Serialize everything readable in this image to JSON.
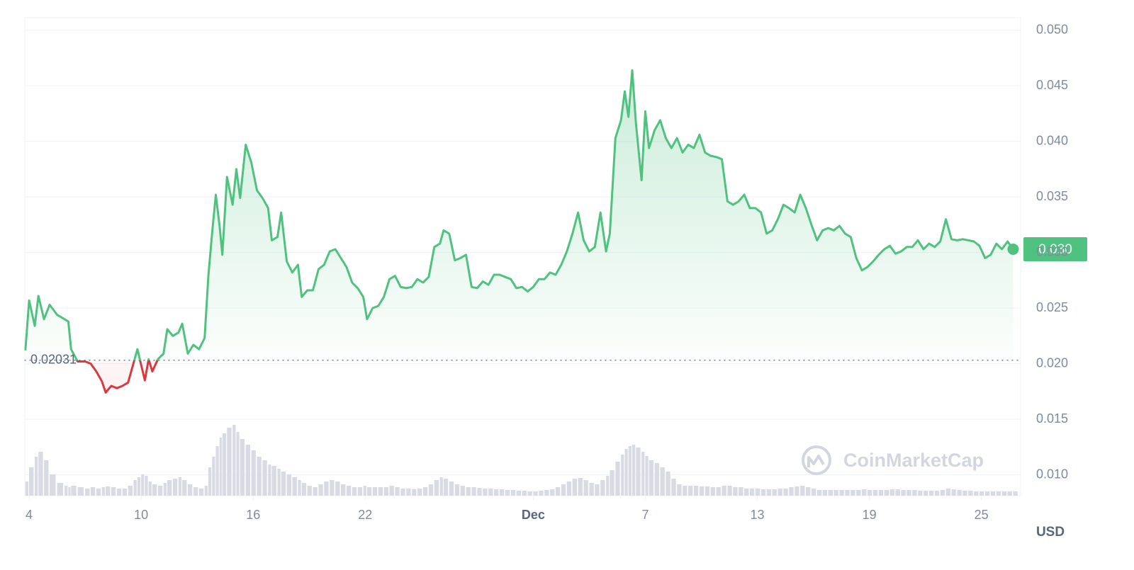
{
  "chart_data": {
    "type": "line",
    "x": [
      3.8,
      4.0,
      4.3,
      4.5,
      4.8,
      5.1,
      5.5,
      5.9,
      6.1,
      6.25,
      6.6,
      7.0,
      7.3,
      7.6,
      7.9,
      8.1,
      8.4,
      8.7,
      9.0,
      9.3,
      9.6,
      9.8,
      10.0,
      10.2,
      10.4,
      10.6,
      10.9,
      11.2,
      11.4,
      11.7,
      12.0,
      12.2,
      12.5,
      12.8,
      13.1,
      13.4,
      13.6,
      13.8,
      14.0,
      14.2,
      14.35,
      14.6,
      14.9,
      15.1,
      15.3,
      15.6,
      15.9,
      16.2,
      16.5,
      16.8,
      17.0,
      17.3,
      17.5,
      17.8,
      18.1,
      18.4,
      18.6,
      18.9,
      19.2,
      19.5,
      19.8,
      20.1,
      20.4,
      20.7,
      21.0,
      21.3,
      21.6,
      21.9,
      22.1,
      22.4,
      22.7,
      23.0,
      23.3,
      23.6,
      23.9,
      24.2,
      24.5,
      24.8,
      25.1,
      25.4,
      25.7,
      26.0,
      26.2,
      26.5,
      26.8,
      27.1,
      27.4,
      27.7,
      28.0,
      28.3,
      28.6,
      28.9,
      29.2,
      29.5,
      29.8,
      30.1,
      30.4,
      30.7,
      31.0,
      31.3,
      31.6,
      31.9,
      32.2,
      32.5,
      32.8,
      33.1,
      33.4,
      33.7,
      34.0,
      34.3,
      34.6,
      34.9,
      35.1,
      35.4,
      35.7,
      35.9,
      36.1,
      36.3,
      36.5,
      36.8,
      37.0,
      37.2,
      37.5,
      37.8,
      38.1,
      38.4,
      38.7,
      39.0,
      39.3,
      39.6,
      39.9,
      40.2,
      40.5,
      40.8,
      41.1,
      41.4,
      41.7,
      42.0,
      42.3,
      42.6,
      42.9,
      43.2,
      43.5,
      43.8,
      44.1,
      44.4,
      44.7,
      45.0,
      45.3,
      45.6,
      45.9,
      46.2,
      46.5,
      46.8,
      47.1,
      47.4,
      47.7,
      48.0,
      48.3,
      48.6,
      48.9,
      49.2,
      49.5,
      49.8,
      50.1,
      50.4,
      50.7,
      51.0,
      51.3,
      51.6,
      51.9,
      52.2,
      52.5,
      52.8,
      53.1,
      53.4,
      53.7,
      54.0,
      54.3,
      54.6,
      54.9,
      55.2,
      55.5,
      55.8,
      56.1,
      56.4,
      56.7
    ],
    "values": [
      0.0212,
      0.0257,
      0.0234,
      0.0261,
      0.024,
      0.0253,
      0.0244,
      0.024,
      0.0238,
      0.0213,
      0.0202,
      0.0202,
      0.02,
      0.0193,
      0.0184,
      0.0174,
      0.018,
      0.0178,
      0.018,
      0.0183,
      0.0201,
      0.0213,
      0.0199,
      0.0185,
      0.0204,
      0.0193,
      0.0204,
      0.0209,
      0.0231,
      0.0225,
      0.0228,
      0.0236,
      0.0209,
      0.0217,
      0.0213,
      0.0223,
      0.0279,
      0.0317,
      0.0352,
      0.0324,
      0.0298,
      0.0368,
      0.0343,
      0.0375,
      0.0349,
      0.0397,
      0.0381,
      0.0356,
      0.0349,
      0.034,
      0.0311,
      0.0314,
      0.0336,
      0.0292,
      0.0282,
      0.0289,
      0.026,
      0.0266,
      0.0266,
      0.0285,
      0.0289,
      0.0301,
      0.0303,
      0.0295,
      0.0287,
      0.0273,
      0.0268,
      0.026,
      0.024,
      0.025,
      0.0252,
      0.026,
      0.0276,
      0.0279,
      0.0269,
      0.0268,
      0.0269,
      0.0276,
      0.0273,
      0.0278,
      0.0305,
      0.0308,
      0.032,
      0.0317,
      0.0293,
      0.0295,
      0.0298,
      0.0269,
      0.0268,
      0.0274,
      0.0271,
      0.028,
      0.028,
      0.0278,
      0.0276,
      0.0268,
      0.0269,
      0.0265,
      0.0269,
      0.0276,
      0.0276,
      0.0282,
      0.028,
      0.0289,
      0.0301,
      0.0317,
      0.0336,
      0.0311,
      0.0301,
      0.0305,
      0.0336,
      0.0301,
      0.0317,
      0.0403,
      0.0419,
      0.0445,
      0.0422,
      0.0464,
      0.0416,
      0.0365,
      0.0427,
      0.0394,
      0.041,
      0.0419,
      0.0403,
      0.0394,
      0.0403,
      0.039,
      0.0397,
      0.0394,
      0.0406,
      0.039,
      0.0387,
      0.0386,
      0.0384,
      0.0346,
      0.0343,
      0.0346,
      0.0352,
      0.034,
      0.034,
      0.0336,
      0.0317,
      0.032,
      0.033,
      0.0343,
      0.034,
      0.0336,
      0.0352,
      0.034,
      0.0325,
      0.0311,
      0.032,
      0.0322,
      0.032,
      0.0324,
      0.0317,
      0.0314,
      0.0295,
      0.0284,
      0.0287,
      0.0292,
      0.0298,
      0.0303,
      0.0306,
      0.0299,
      0.0301,
      0.0305,
      0.0305,
      0.0311,
      0.0303,
      0.0308,
      0.0305,
      0.031,
      0.033,
      0.0312,
      0.0311,
      0.0312,
      0.0311,
      0.031,
      0.0306,
      0.0295,
      0.0298,
      0.0308,
      0.0303,
      0.031,
      0.0303
    ],
    "volume": [
      20,
      40,
      55,
      62,
      50,
      30,
      18,
      14,
      12,
      14,
      12,
      10,
      12,
      10,
      12,
      13,
      12,
      10,
      10,
      14,
      22,
      26,
      30,
      28,
      20,
      16,
      14,
      18,
      22,
      24,
      26,
      22,
      16,
      12,
      10,
      14,
      40,
      55,
      70,
      82,
      88,
      96,
      100,
      90,
      80,
      72,
      64,
      55,
      50,
      44,
      42,
      38,
      34,
      30,
      26,
      22,
      18,
      14,
      12,
      16,
      20,
      22,
      20,
      16,
      14,
      12,
      12,
      14,
      12,
      12,
      12,
      12,
      14,
      12,
      10,
      10,
      9,
      10,
      12,
      16,
      22,
      26,
      24,
      20,
      16,
      14,
      12,
      12,
      11,
      10,
      10,
      9,
      9,
      8,
      8,
      7,
      7,
      6,
      6,
      7,
      8,
      9,
      12,
      16,
      20,
      24,
      25,
      22,
      18,
      16,
      22,
      28,
      36,
      48,
      58,
      66,
      70,
      72,
      68,
      62,
      56,
      50,
      46,
      40,
      34,
      24,
      16,
      14,
      14,
      14,
      13,
      13,
      12,
      12,
      14,
      14,
      12,
      12,
      10,
      10,
      10,
      9,
      9,
      9,
      10,
      10,
      12,
      13,
      14,
      12,
      10,
      8,
      8,
      8,
      8,
      8,
      8,
      8,
      8,
      9,
      8,
      8,
      8,
      8,
      9,
      9,
      8,
      8,
      8,
      7,
      7,
      7,
      7,
      8,
      10,
      9,
      8,
      7,
      7,
      6,
      6,
      6,
      6,
      6,
      6,
      6,
      6
    ],
    "xlim": [
      3.77,
      57.1
    ],
    "xticks": [
      4,
      10,
      16,
      22,
      {
        "value": 31,
        "label": "Dec"
      },
      {
        "value": 37,
        "label": "7"
      },
      {
        "value": 43,
        "label": "13"
      },
      {
        "value": 49,
        "label": "19"
      },
      {
        "value": 55,
        "label": "25"
      }
    ],
    "ylim": [
      0.008,
      0.051
    ],
    "yticks": [
      {
        "value": 0.01,
        "label": "0.010"
      },
      {
        "value": 0.015,
        "label": "0.015"
      },
      {
        "value": 0.02,
        "label": "0.020"
      },
      {
        "value": 0.025,
        "label": "0.025"
      },
      {
        "value": 0.03,
        "label": "0.030"
      },
      {
        "value": 0.035,
        "label": "0.035"
      },
      {
        "value": 0.04,
        "label": "0.040"
      },
      {
        "value": 0.045,
        "label": "0.045"
      },
      {
        "value": 0.05,
        "label": "0.050"
      }
    ],
    "baseline": 0.02031,
    "current_price": {
      "value": 0.0303,
      "label": "0.030"
    },
    "y_unit": "USD",
    "watermark": "CoinMarketCap",
    "grid": true,
    "up_color": "#4fc27f",
    "down_color": "#d83a3f",
    "volume_color": "#d9dbe4"
  }
}
